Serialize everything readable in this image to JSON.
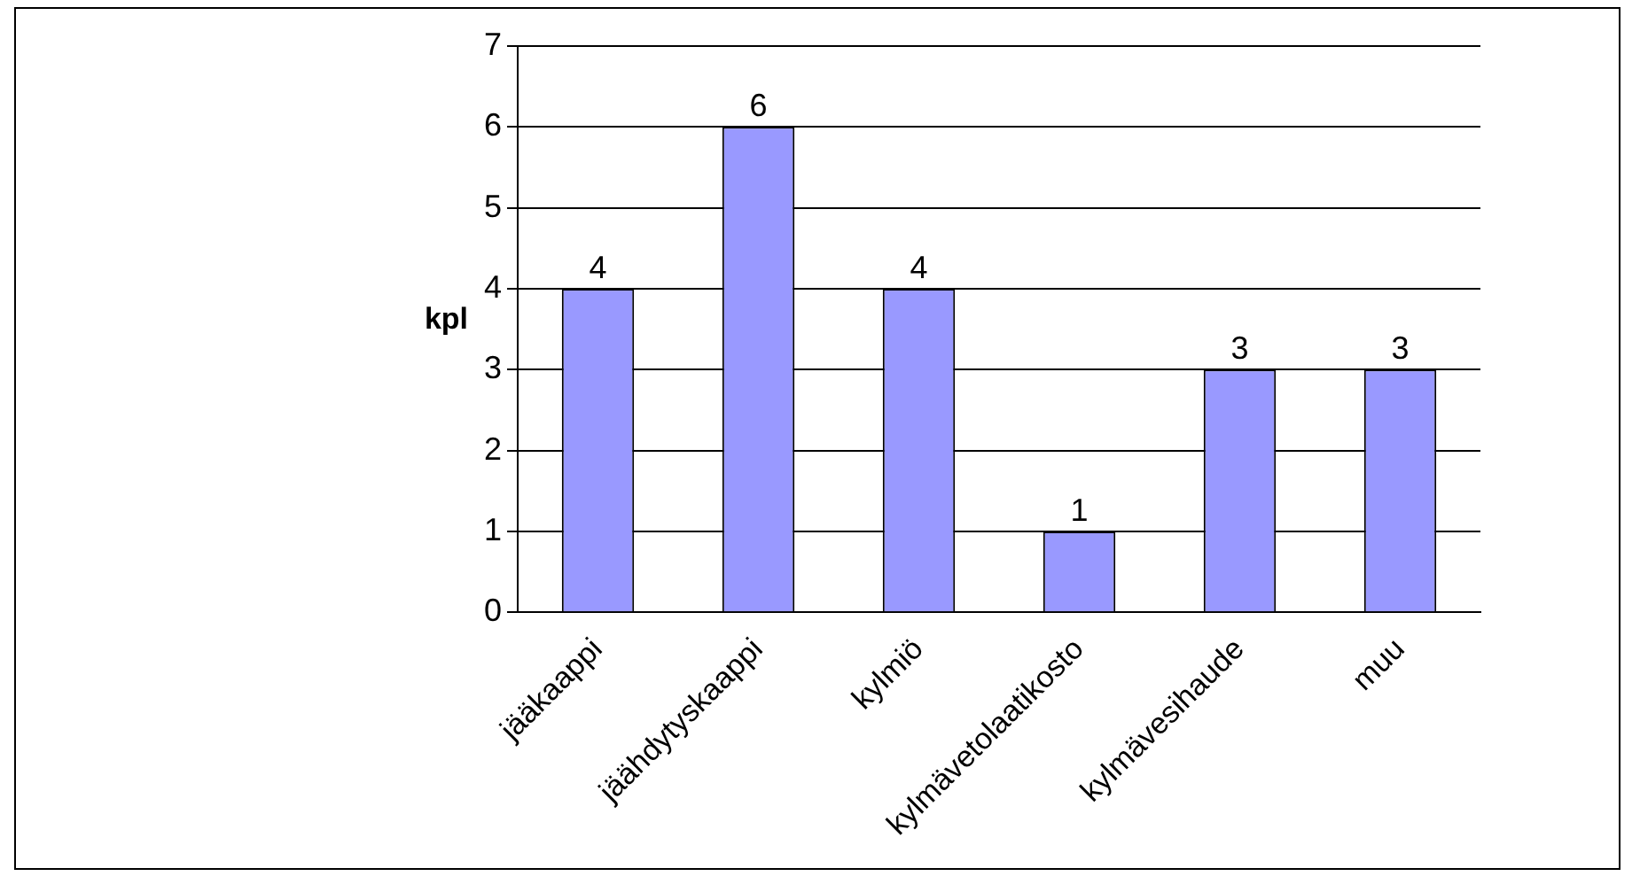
{
  "chart_data": {
    "type": "bar",
    "ylabel": "kpl",
    "categories": [
      "jääkaappi",
      "jäähdytyskaappi",
      "kylmiö",
      "kylmävetolaatikosto",
      "kylmävesihaude",
      "muu"
    ],
    "values": [
      4,
      6,
      4,
      1,
      3,
      3
    ],
    "color": "#9999ff",
    "ylim": [
      0,
      7
    ],
    "yticks": [
      0,
      1,
      2,
      3,
      4,
      5,
      6,
      7
    ],
    "grid": "y",
    "data_labels": true,
    "legend": false
  }
}
